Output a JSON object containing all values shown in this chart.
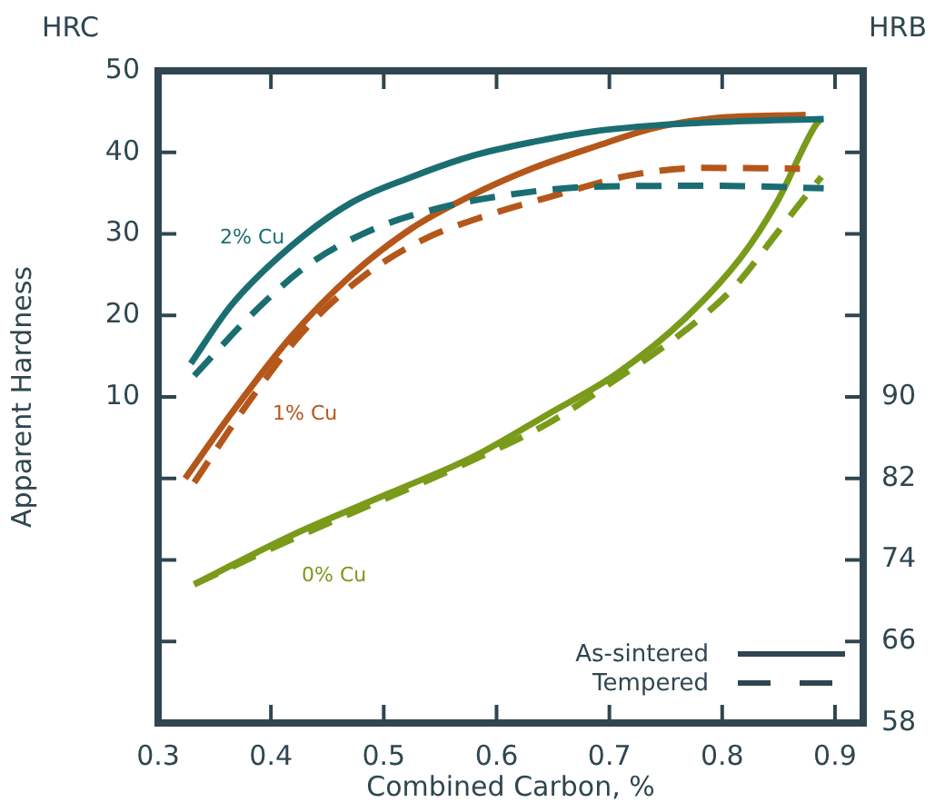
{
  "chart_data": {
    "type": "line",
    "ylabel": "Apparent Hardness",
    "xlabel": "Combined Carbon, %",
    "xlim": [
      0.3,
      0.925
    ],
    "xticks": [
      0.3,
      0.4,
      0.5,
      0.6,
      0.7,
      0.8,
      0.9
    ],
    "ylim": [
      -30,
      50
    ],
    "yticks": [
      {
        "value": -20,
        "label": null
      },
      {
        "value": -10,
        "label": null
      },
      {
        "value": 0,
        "label": null
      },
      10,
      20,
      30,
      40,
      50
    ],
    "y2lim": [
      58,
      122
    ],
    "y2ticks": [
      58,
      66,
      74,
      82,
      90,
      {
        "value": 98,
        "label": null
      },
      {
        "value": 106,
        "label": null
      },
      {
        "value": 114,
        "label": null
      }
    ],
    "grid": false,
    "legend": false,
    "marker": "none",
    "series": [
      {
        "color": "#1a6e72",
        "line_style": "solid",
        "x": [
          0.329,
          0.364,
          0.418,
          0.471,
          0.525,
          0.579,
          0.633,
          0.687,
          0.74,
          0.794,
          0.89
        ],
        "values": [
          14.1,
          21.1,
          28.5,
          33.8,
          37.0,
          39.6,
          41.3,
          42.6,
          43.3,
          43.7,
          44.1
        ]
      },
      {
        "color": "#1a6e72",
        "line_style": "dashed",
        "x": [
          0.332,
          0.385,
          0.434,
          0.493,
          0.547,
          0.611,
          0.687,
          0.794,
          0.89
        ],
        "values": [
          12.6,
          20.4,
          26.3,
          30.7,
          33.1,
          34.8,
          35.8,
          35.9,
          35.6
        ]
      },
      {
        "color": "#b5561a",
        "line_style": "solid",
        "x": [
          0.324,
          0.364,
          0.418,
          0.471,
          0.525,
          0.579,
          0.633,
          0.687,
          0.74,
          0.794,
          0.874
        ],
        "values": [
          0,
          7.8,
          17.4,
          24.9,
          30.7,
          34.8,
          38.1,
          40.7,
          43.0,
          44.2,
          44.6
        ]
      },
      {
        "color": "#b5561a",
        "line_style": "dashed",
        "x": [
          0.332,
          0.38,
          0.429,
          0.482,
          0.535,
          0.59,
          0.654,
          0.719,
          0.783,
          0.869
        ],
        "values": [
          -0.5,
          9.3,
          18.1,
          24.8,
          29.3,
          32.2,
          34.8,
          37.2,
          38.1,
          38.0
        ]
      },
      {
        "color": "#7a9a1a",
        "line_style": "solid",
        "axis": "y2",
        "x": [
          0.332,
          0.418,
          0.504,
          0.579,
          0.644,
          0.708,
          0.767,
          0.816,
          0.848,
          0.883,
          0.888
        ],
        "values": [
          71.6,
          76.4,
          80.5,
          84.1,
          88.2,
          92.4,
          97.7,
          103.6,
          109.0,
          116.7,
          117.3
        ]
      },
      {
        "color": "#7a9a1a",
        "line_style": "dashed",
        "axis": "y2",
        "x": [
          0.332,
          0.418,
          0.579,
          0.644,
          0.703,
          0.767,
          0.81,
          0.848,
          0.869,
          0.888
        ],
        "values": [
          71.6,
          76.0,
          83.8,
          87.3,
          91.5,
          96.5,
          100.7,
          106.0,
          109.0,
          111.6
        ]
      }
    ],
    "annotations": [
      "HRC",
      "HRB",
      "As-sintered",
      "Tempered",
      "2% Cu",
      "1% Cu",
      "0% Cu"
    ]
  }
}
